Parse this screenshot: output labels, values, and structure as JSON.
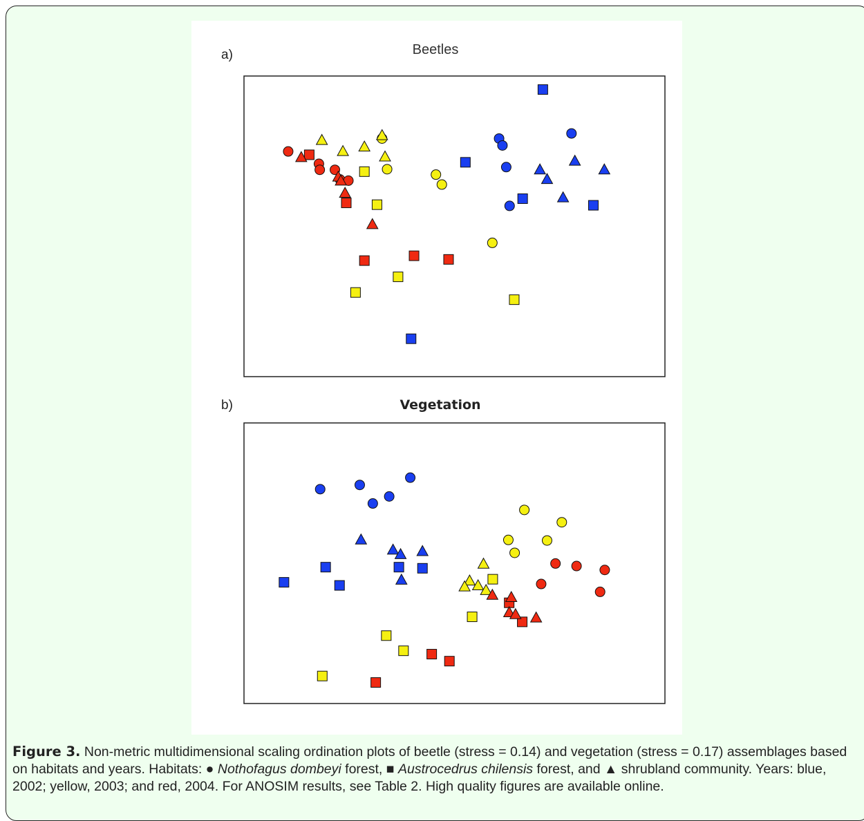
{
  "chart_data": [
    {
      "type": "scatter",
      "panel_label": "a)",
      "title": "Beetles",
      "title_bold": false,
      "xlabel": "",
      "ylabel": "",
      "xlim": [
        0,
        100
      ],
      "ylim": [
        0,
        100
      ],
      "grid": false,
      "legend": "none",
      "points": [
        {
          "x": 71.0,
          "y": 95.5,
          "shape": "square",
          "year": "2002"
        },
        {
          "x": 52.6,
          "y": 71.3,
          "shape": "square",
          "year": "2002"
        },
        {
          "x": 66.2,
          "y": 59.2,
          "shape": "square",
          "year": "2002"
        },
        {
          "x": 83.0,
          "y": 57.0,
          "shape": "square",
          "year": "2002"
        },
        {
          "x": 39.7,
          "y": 12.6,
          "shape": "square",
          "year": "2002"
        },
        {
          "x": 60.6,
          "y": 79.2,
          "shape": "circle",
          "year": "2002"
        },
        {
          "x": 61.4,
          "y": 76.9,
          "shape": "circle",
          "year": "2002"
        },
        {
          "x": 77.8,
          "y": 80.9,
          "shape": "circle",
          "year": "2002"
        },
        {
          "x": 62.3,
          "y": 69.7,
          "shape": "circle",
          "year": "2002"
        },
        {
          "x": 63.1,
          "y": 56.8,
          "shape": "circle",
          "year": "2002"
        },
        {
          "x": 70.3,
          "y": 68.8,
          "shape": "triangle",
          "year": "2002"
        },
        {
          "x": 72.0,
          "y": 65.6,
          "shape": "triangle",
          "year": "2002"
        },
        {
          "x": 78.6,
          "y": 71.7,
          "shape": "triangle",
          "year": "2002"
        },
        {
          "x": 85.6,
          "y": 68.8,
          "shape": "triangle",
          "year": "2002"
        },
        {
          "x": 75.8,
          "y": 59.5,
          "shape": "triangle",
          "year": "2002"
        },
        {
          "x": 28.6,
          "y": 68.2,
          "shape": "square",
          "year": "2003"
        },
        {
          "x": 31.6,
          "y": 57.2,
          "shape": "square",
          "year": "2003"
        },
        {
          "x": 26.5,
          "y": 28.0,
          "shape": "square",
          "year": "2003"
        },
        {
          "x": 36.6,
          "y": 33.2,
          "shape": "square",
          "year": "2003"
        },
        {
          "x": 64.2,
          "y": 25.6,
          "shape": "square",
          "year": "2003"
        },
        {
          "x": 32.8,
          "y": 79.2,
          "shape": "circle",
          "year": "2003"
        },
        {
          "x": 34.0,
          "y": 69.0,
          "shape": "circle",
          "year": "2003"
        },
        {
          "x": 45.6,
          "y": 67.2,
          "shape": "circle",
          "year": "2003"
        },
        {
          "x": 47.0,
          "y": 63.9,
          "shape": "circle",
          "year": "2003"
        },
        {
          "x": 59.0,
          "y": 44.5,
          "shape": "circle",
          "year": "2003"
        },
        {
          "x": 18.5,
          "y": 78.6,
          "shape": "triangle",
          "year": "2003"
        },
        {
          "x": 23.5,
          "y": 74.9,
          "shape": "triangle",
          "year": "2003"
        },
        {
          "x": 28.6,
          "y": 76.4,
          "shape": "triangle",
          "year": "2003"
        },
        {
          "x": 32.8,
          "y": 80.2,
          "shape": "triangle",
          "year": "2003"
        },
        {
          "x": 33.5,
          "y": 73.1,
          "shape": "triangle",
          "year": "2003"
        },
        {
          "x": 15.5,
          "y": 73.8,
          "shape": "square",
          "year": "2004"
        },
        {
          "x": 24.3,
          "y": 57.8,
          "shape": "square",
          "year": "2004"
        },
        {
          "x": 28.6,
          "y": 38.6,
          "shape": "square",
          "year": "2004"
        },
        {
          "x": 40.4,
          "y": 40.2,
          "shape": "square",
          "year": "2004"
        },
        {
          "x": 48.6,
          "y": 39.0,
          "shape": "square",
          "year": "2004"
        },
        {
          "x": 10.5,
          "y": 74.9,
          "shape": "circle",
          "year": "2004"
        },
        {
          "x": 17.8,
          "y": 70.8,
          "shape": "circle",
          "year": "2004"
        },
        {
          "x": 18.0,
          "y": 68.8,
          "shape": "circle",
          "year": "2004"
        },
        {
          "x": 21.6,
          "y": 68.8,
          "shape": "circle",
          "year": "2004"
        },
        {
          "x": 22.8,
          "y": 65.6,
          "shape": "circle",
          "year": "2004"
        },
        {
          "x": 24.8,
          "y": 65.2,
          "shape": "circle",
          "year": "2004"
        },
        {
          "x": 13.6,
          "y": 72.9,
          "shape": "triangle",
          "year": "2004"
        },
        {
          "x": 22.4,
          "y": 66.4,
          "shape": "triangle",
          "year": "2004"
        },
        {
          "x": 23.0,
          "y": 65.1,
          "shape": "triangle",
          "year": "2004"
        },
        {
          "x": 24.0,
          "y": 61.0,
          "shape": "triangle",
          "year": "2004"
        },
        {
          "x": 30.5,
          "y": 50.6,
          "shape": "triangle",
          "year": "2004"
        }
      ]
    },
    {
      "type": "scatter",
      "panel_label": "b)",
      "title": "Vegetation",
      "title_bold": true,
      "xlabel": "",
      "ylabel": "",
      "xlim": [
        0,
        100
      ],
      "ylim": [
        0,
        100
      ],
      "grid": false,
      "legend": "none",
      "points": [
        {
          "x": 9.5,
          "y": 43.2,
          "shape": "square",
          "year": "2002"
        },
        {
          "x": 19.4,
          "y": 48.6,
          "shape": "square",
          "year": "2002"
        },
        {
          "x": 22.7,
          "y": 42.1,
          "shape": "square",
          "year": "2002"
        },
        {
          "x": 36.8,
          "y": 48.6,
          "shape": "square",
          "year": "2002"
        },
        {
          "x": 42.4,
          "y": 48.2,
          "shape": "square",
          "year": "2002"
        },
        {
          "x": 18.1,
          "y": 76.4,
          "shape": "circle",
          "year": "2002"
        },
        {
          "x": 27.5,
          "y": 77.9,
          "shape": "circle",
          "year": "2002"
        },
        {
          "x": 30.6,
          "y": 71.3,
          "shape": "circle",
          "year": "2002"
        },
        {
          "x": 34.5,
          "y": 73.8,
          "shape": "circle",
          "year": "2002"
        },
        {
          "x": 39.5,
          "y": 80.5,
          "shape": "circle",
          "year": "2002"
        },
        {
          "x": 27.8,
          "y": 58.3,
          "shape": "triangle",
          "year": "2002"
        },
        {
          "x": 35.4,
          "y": 54.7,
          "shape": "triangle",
          "year": "2002"
        },
        {
          "x": 37.2,
          "y": 53.1,
          "shape": "triangle",
          "year": "2002"
        },
        {
          "x": 42.4,
          "y": 54.2,
          "shape": "triangle",
          "year": "2002"
        },
        {
          "x": 37.4,
          "y": 44.0,
          "shape": "triangle",
          "year": "2002"
        },
        {
          "x": 59.1,
          "y": 44.3,
          "shape": "square",
          "year": "2003"
        },
        {
          "x": 54.2,
          "y": 30.9,
          "shape": "square",
          "year": "2003"
        },
        {
          "x": 33.8,
          "y": 24.2,
          "shape": "square",
          "year": "2003"
        },
        {
          "x": 37.9,
          "y": 18.8,
          "shape": "square",
          "year": "2003"
        },
        {
          "x": 18.6,
          "y": 9.8,
          "shape": "square",
          "year": "2003"
        },
        {
          "x": 66.6,
          "y": 69.0,
          "shape": "circle",
          "year": "2003"
        },
        {
          "x": 75.5,
          "y": 64.6,
          "shape": "circle",
          "year": "2003"
        },
        {
          "x": 62.8,
          "y": 58.3,
          "shape": "circle",
          "year": "2003"
        },
        {
          "x": 72.0,
          "y": 58.1,
          "shape": "circle",
          "year": "2003"
        },
        {
          "x": 64.3,
          "y": 53.7,
          "shape": "circle",
          "year": "2003"
        },
        {
          "x": 56.9,
          "y": 49.7,
          "shape": "triangle",
          "year": "2003"
        },
        {
          "x": 53.6,
          "y": 43.7,
          "shape": "triangle",
          "year": "2003"
        },
        {
          "x": 52.4,
          "y": 41.6,
          "shape": "triangle",
          "year": "2003"
        },
        {
          "x": 55.6,
          "y": 42.0,
          "shape": "triangle",
          "year": "2003"
        },
        {
          "x": 57.5,
          "y": 40.3,
          "shape": "triangle",
          "year": "2003"
        },
        {
          "x": 63.0,
          "y": 35.9,
          "shape": "square",
          "year": "2004"
        },
        {
          "x": 66.1,
          "y": 29.1,
          "shape": "square",
          "year": "2004"
        },
        {
          "x": 44.6,
          "y": 17.6,
          "shape": "square",
          "year": "2004"
        },
        {
          "x": 48.8,
          "y": 15.1,
          "shape": "square",
          "year": "2004"
        },
        {
          "x": 31.3,
          "y": 7.5,
          "shape": "square",
          "year": "2004"
        },
        {
          "x": 74.0,
          "y": 49.9,
          "shape": "circle",
          "year": "2004"
        },
        {
          "x": 79.0,
          "y": 49.0,
          "shape": "circle",
          "year": "2004"
        },
        {
          "x": 85.7,
          "y": 47.6,
          "shape": "circle",
          "year": "2004"
        },
        {
          "x": 70.6,
          "y": 42.6,
          "shape": "circle",
          "year": "2004"
        },
        {
          "x": 84.6,
          "y": 39.8,
          "shape": "circle",
          "year": "2004"
        },
        {
          "x": 59.0,
          "y": 38.6,
          "shape": "triangle",
          "year": "2004"
        },
        {
          "x": 63.5,
          "y": 37.8,
          "shape": "triangle",
          "year": "2004"
        },
        {
          "x": 63.0,
          "y": 32.4,
          "shape": "triangle",
          "year": "2004"
        },
        {
          "x": 64.5,
          "y": 31.7,
          "shape": "triangle",
          "year": "2004"
        },
        {
          "x": 69.4,
          "y": 30.5,
          "shape": "triangle",
          "year": "2004"
        }
      ]
    }
  ],
  "colors": {
    "2002": "#1a3ff0",
    "2003": "#f5f012",
    "2004": "#ef2a12",
    "frame_bg": "#efffef",
    "marker_outline": "#111111"
  },
  "caption": {
    "label": "Figure 3.",
    "text1": " Non-metric multidimensional scaling ordination plots of beetle (stress = 0.14) and vegetation (stress = 0.17) assemblages based on habitats and years. Habitats: ● ",
    "species1": "Nothofagus dombeyi",
    "text2": " forest, ■ ",
    "species2": "Austrocedrus chilensis",
    "text3": " forest, and ▲ shrubland community. Years: blue, 2002; yellow, 2003; and red, 2004. For ANOSIM results, see Table 2.  High quality figures are available online."
  }
}
